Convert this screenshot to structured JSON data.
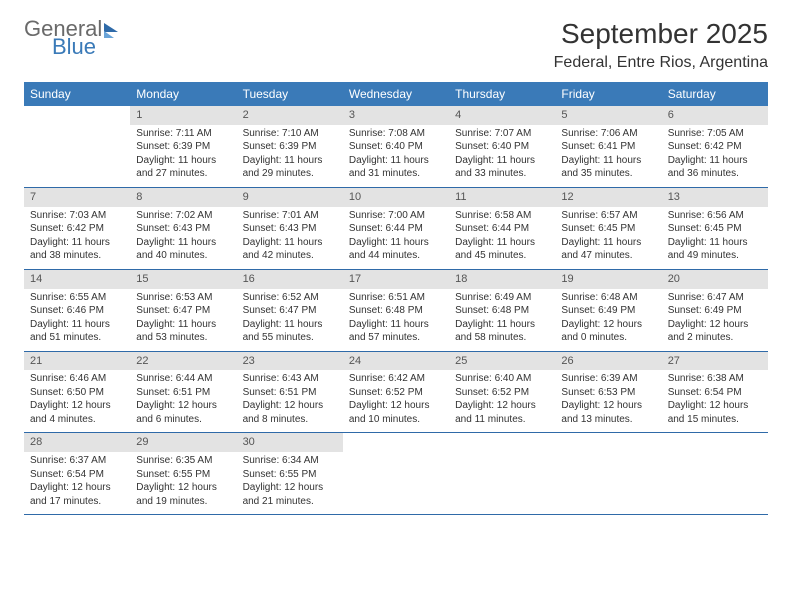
{
  "brand": {
    "word1": "General",
    "word2": "Blue"
  },
  "header": {
    "title": "September 2025",
    "location": "Federal, Entre Rios, Argentina"
  },
  "colors": {
    "header_bar": "#3a7ab8",
    "daynum_bg": "#e3e3e3",
    "rule": "#2f6aa8",
    "text": "#333333"
  },
  "daysOfWeek": [
    "Sunday",
    "Monday",
    "Tuesday",
    "Wednesday",
    "Thursday",
    "Friday",
    "Saturday"
  ],
  "weeks": [
    [
      {
        "n": "",
        "sr": "",
        "ss": "",
        "dl": "",
        "empty": true
      },
      {
        "n": "1",
        "sr": "Sunrise: 7:11 AM",
        "ss": "Sunset: 6:39 PM",
        "dl": "Daylight: 11 hours and 27 minutes."
      },
      {
        "n": "2",
        "sr": "Sunrise: 7:10 AM",
        "ss": "Sunset: 6:39 PM",
        "dl": "Daylight: 11 hours and 29 minutes."
      },
      {
        "n": "3",
        "sr": "Sunrise: 7:08 AM",
        "ss": "Sunset: 6:40 PM",
        "dl": "Daylight: 11 hours and 31 minutes."
      },
      {
        "n": "4",
        "sr": "Sunrise: 7:07 AM",
        "ss": "Sunset: 6:40 PM",
        "dl": "Daylight: 11 hours and 33 minutes."
      },
      {
        "n": "5",
        "sr": "Sunrise: 7:06 AM",
        "ss": "Sunset: 6:41 PM",
        "dl": "Daylight: 11 hours and 35 minutes."
      },
      {
        "n": "6",
        "sr": "Sunrise: 7:05 AM",
        "ss": "Sunset: 6:42 PM",
        "dl": "Daylight: 11 hours and 36 minutes."
      }
    ],
    [
      {
        "n": "7",
        "sr": "Sunrise: 7:03 AM",
        "ss": "Sunset: 6:42 PM",
        "dl": "Daylight: 11 hours and 38 minutes."
      },
      {
        "n": "8",
        "sr": "Sunrise: 7:02 AM",
        "ss": "Sunset: 6:43 PM",
        "dl": "Daylight: 11 hours and 40 minutes."
      },
      {
        "n": "9",
        "sr": "Sunrise: 7:01 AM",
        "ss": "Sunset: 6:43 PM",
        "dl": "Daylight: 11 hours and 42 minutes."
      },
      {
        "n": "10",
        "sr": "Sunrise: 7:00 AM",
        "ss": "Sunset: 6:44 PM",
        "dl": "Daylight: 11 hours and 44 minutes."
      },
      {
        "n": "11",
        "sr": "Sunrise: 6:58 AM",
        "ss": "Sunset: 6:44 PM",
        "dl": "Daylight: 11 hours and 45 minutes."
      },
      {
        "n": "12",
        "sr": "Sunrise: 6:57 AM",
        "ss": "Sunset: 6:45 PM",
        "dl": "Daylight: 11 hours and 47 minutes."
      },
      {
        "n": "13",
        "sr": "Sunrise: 6:56 AM",
        "ss": "Sunset: 6:45 PM",
        "dl": "Daylight: 11 hours and 49 minutes."
      }
    ],
    [
      {
        "n": "14",
        "sr": "Sunrise: 6:55 AM",
        "ss": "Sunset: 6:46 PM",
        "dl": "Daylight: 11 hours and 51 minutes."
      },
      {
        "n": "15",
        "sr": "Sunrise: 6:53 AM",
        "ss": "Sunset: 6:47 PM",
        "dl": "Daylight: 11 hours and 53 minutes."
      },
      {
        "n": "16",
        "sr": "Sunrise: 6:52 AM",
        "ss": "Sunset: 6:47 PM",
        "dl": "Daylight: 11 hours and 55 minutes."
      },
      {
        "n": "17",
        "sr": "Sunrise: 6:51 AM",
        "ss": "Sunset: 6:48 PM",
        "dl": "Daylight: 11 hours and 57 minutes."
      },
      {
        "n": "18",
        "sr": "Sunrise: 6:49 AM",
        "ss": "Sunset: 6:48 PM",
        "dl": "Daylight: 11 hours and 58 minutes."
      },
      {
        "n": "19",
        "sr": "Sunrise: 6:48 AM",
        "ss": "Sunset: 6:49 PM",
        "dl": "Daylight: 12 hours and 0 minutes."
      },
      {
        "n": "20",
        "sr": "Sunrise: 6:47 AM",
        "ss": "Sunset: 6:49 PM",
        "dl": "Daylight: 12 hours and 2 minutes."
      }
    ],
    [
      {
        "n": "21",
        "sr": "Sunrise: 6:46 AM",
        "ss": "Sunset: 6:50 PM",
        "dl": "Daylight: 12 hours and 4 minutes."
      },
      {
        "n": "22",
        "sr": "Sunrise: 6:44 AM",
        "ss": "Sunset: 6:51 PM",
        "dl": "Daylight: 12 hours and 6 minutes."
      },
      {
        "n": "23",
        "sr": "Sunrise: 6:43 AM",
        "ss": "Sunset: 6:51 PM",
        "dl": "Daylight: 12 hours and 8 minutes."
      },
      {
        "n": "24",
        "sr": "Sunrise: 6:42 AM",
        "ss": "Sunset: 6:52 PM",
        "dl": "Daylight: 12 hours and 10 minutes."
      },
      {
        "n": "25",
        "sr": "Sunrise: 6:40 AM",
        "ss": "Sunset: 6:52 PM",
        "dl": "Daylight: 12 hours and 11 minutes."
      },
      {
        "n": "26",
        "sr": "Sunrise: 6:39 AM",
        "ss": "Sunset: 6:53 PM",
        "dl": "Daylight: 12 hours and 13 minutes."
      },
      {
        "n": "27",
        "sr": "Sunrise: 6:38 AM",
        "ss": "Sunset: 6:54 PM",
        "dl": "Daylight: 12 hours and 15 minutes."
      }
    ],
    [
      {
        "n": "28",
        "sr": "Sunrise: 6:37 AM",
        "ss": "Sunset: 6:54 PM",
        "dl": "Daylight: 12 hours and 17 minutes."
      },
      {
        "n": "29",
        "sr": "Sunrise: 6:35 AM",
        "ss": "Sunset: 6:55 PM",
        "dl": "Daylight: 12 hours and 19 minutes."
      },
      {
        "n": "30",
        "sr": "Sunrise: 6:34 AM",
        "ss": "Sunset: 6:55 PM",
        "dl": "Daylight: 12 hours and 21 minutes."
      },
      {
        "n": "",
        "sr": "",
        "ss": "",
        "dl": "",
        "empty": true
      },
      {
        "n": "",
        "sr": "",
        "ss": "",
        "dl": "",
        "empty": true
      },
      {
        "n": "",
        "sr": "",
        "ss": "",
        "dl": "",
        "empty": true
      },
      {
        "n": "",
        "sr": "",
        "ss": "",
        "dl": "",
        "empty": true
      }
    ]
  ]
}
